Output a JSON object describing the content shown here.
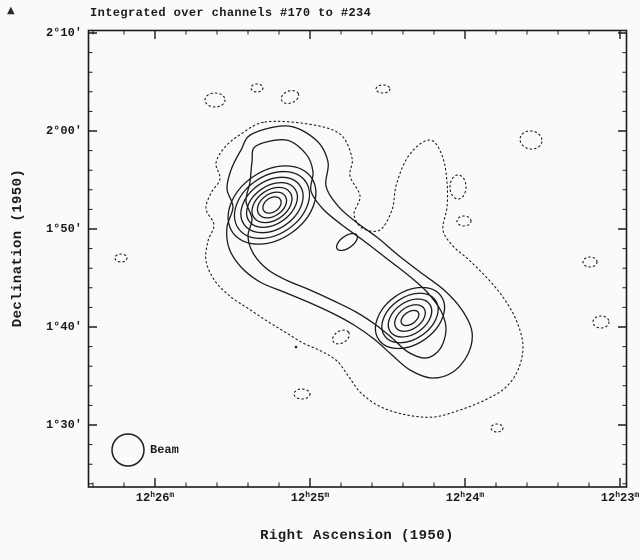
{
  "figure": {
    "title": "Integrated over channels #170 to #234",
    "ink_color": "#1b1b1b",
    "paper_color": "#fafaf8",
    "beam_label": "Beam",
    "x_axis": {
      "label": "Right Ascension (1950)",
      "ticks": [
        {
          "value": "12h26m",
          "hours": "12",
          "hour_sup": "h",
          "minutes": "26",
          "minute_sup": "m"
        },
        {
          "value": "12h25m",
          "hours": "12",
          "hour_sup": "h",
          "minutes": "25",
          "minute_sup": "m"
        },
        {
          "value": "12h24m",
          "hours": "12",
          "hour_sup": "h",
          "minutes": "24",
          "minute_sup": "m"
        },
        {
          "value": "12h23m",
          "hours": "12",
          "hour_sup": "h",
          "minutes": "23",
          "minute_sup": "m"
        }
      ]
    },
    "y_axis": {
      "label": "Declination (1950)",
      "ticks": [
        "2°10′",
        "2°00′",
        "1°50′",
        "1°40′",
        "1°30′"
      ]
    }
  },
  "chart_data": {
    "type": "contour",
    "title": "Integrated over channels #170 to #234",
    "xlabel": "Right Ascension (1950)",
    "ylabel": "Declination (1950)",
    "x_tick_labels": [
      "12h26m",
      "12h25m",
      "12h24m",
      "12h23m"
    ],
    "y_tick_labels": [
      "2°10′",
      "2°00′",
      "1°50′",
      "1°40′",
      "1°30′"
    ],
    "x_axis_direction": "right ascension decreases toward the right",
    "x_range_approx": [
      "12h26m26s",
      "12h22m58s"
    ],
    "y_range_approx": [
      "+1°24′",
      "+2°10.5′"
    ],
    "grid": false,
    "legend": "none",
    "features": {
      "description": "Integrated-intensity contour map with two emission peaks joined by a ridge elongated NE-SW; the lowest contour level is drawn dotted and scattered faint dotted patches appear across the field",
      "peaks": [
        {
          "id": "northeast-peak",
          "ra_approx": "12h25m15s",
          "dec_approx": "+1°53′",
          "closed_contour_levels": 7
        },
        {
          "id": "southwest-peak",
          "ra_approx": "12h24m21s",
          "dec_approx": "+1°41′",
          "closed_contour_levels": 5
        }
      ],
      "beam": {
        "shown": true,
        "position": "bottom-left inside frame",
        "shape": "circle",
        "label": "Beam"
      }
    }
  }
}
